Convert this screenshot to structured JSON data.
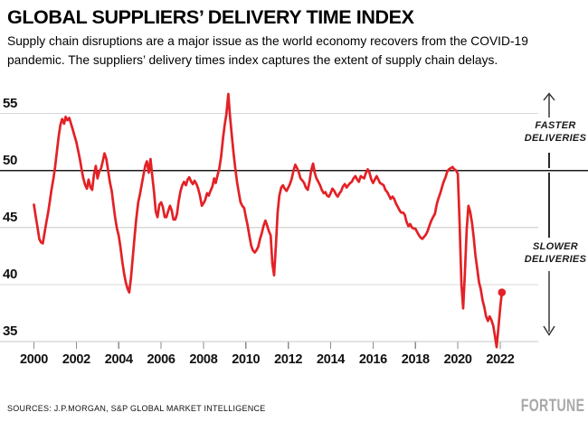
{
  "header": {
    "title": "GLOBAL SUPPLIERS’ DELIVERY TIME INDEX",
    "subtitle_line1": "Supply chain disruptions are a major issue as the world economy recovers from the COVID-19",
    "subtitle_line2": "pandemic. The suppliers’ delivery times index captures the extent of supply chain delays."
  },
  "annotations": {
    "faster": "FASTER\nDELIVERIES",
    "slower": "SLOWER\nDELIVERIES"
  },
  "footer": {
    "sources": "SOURCES: J.P.MORGAN, S&P GLOBAL MARKET INTELLIGENCE",
    "logo": "FORTUNE"
  },
  "colors": {
    "line": "#e32126",
    "reference_line": "#1a1a1a",
    "gridline": "#d9d9d9",
    "axis_line": "#c7c7c7",
    "tick": "#8d8d8d",
    "logo_gray": "#a8a8a8",
    "text": "#000000"
  },
  "chart_data": {
    "type": "line",
    "title": "Global suppliers' delivery time index",
    "series_name": "Suppliers' delivery times index",
    "xlabel": "",
    "ylabel": "",
    "x_range": [
      2000,
      2022.25
    ],
    "y_range_shown": [
      35,
      57
    ],
    "yticks": [
      55,
      50,
      45,
      40,
      35
    ],
    "xticks": [
      2000,
      2002,
      2004,
      2006,
      2008,
      2010,
      2012,
      2014,
      2016,
      2018,
      2020,
      2022
    ],
    "reference_line_value": 50,
    "grid": "horizontal",
    "end_dot": true,
    "points": [
      [
        2000.0,
        47.0
      ],
      [
        2000.08,
        46.0
      ],
      [
        2000.17,
        45.0
      ],
      [
        2000.25,
        44.0
      ],
      [
        2000.33,
        43.7
      ],
      [
        2000.42,
        43.6
      ],
      [
        2000.5,
        44.5
      ],
      [
        2000.58,
        45.4
      ],
      [
        2000.67,
        46.3
      ],
      [
        2000.75,
        47.3
      ],
      [
        2000.83,
        48.3
      ],
      [
        2000.92,
        49.3
      ],
      [
        2001.0,
        50.3
      ],
      [
        2001.08,
        51.6
      ],
      [
        2001.17,
        53.0
      ],
      [
        2001.25,
        54.0
      ],
      [
        2001.33,
        54.5
      ],
      [
        2001.42,
        54.1
      ],
      [
        2001.5,
        54.7
      ],
      [
        2001.58,
        54.4
      ],
      [
        2001.67,
        54.6
      ],
      [
        2001.75,
        54.1
      ],
      [
        2001.83,
        53.6
      ],
      [
        2001.92,
        53.0
      ],
      [
        2002.0,
        52.5
      ],
      [
        2002.08,
        51.8
      ],
      [
        2002.17,
        51.0
      ],
      [
        2002.25,
        50.1
      ],
      [
        2002.33,
        49.3
      ],
      [
        2002.42,
        48.7
      ],
      [
        2002.5,
        48.4
      ],
      [
        2002.58,
        49.2
      ],
      [
        2002.67,
        48.5
      ],
      [
        2002.75,
        48.3
      ],
      [
        2002.83,
        49.6
      ],
      [
        2002.92,
        50.4
      ],
      [
        2003.0,
        49.3
      ],
      [
        2003.08,
        49.9
      ],
      [
        2003.17,
        50.2
      ],
      [
        2003.25,
        50.8
      ],
      [
        2003.33,
        51.5
      ],
      [
        2003.42,
        51.0
      ],
      [
        2003.5,
        50.0
      ],
      [
        2003.58,
        49.0
      ],
      [
        2003.67,
        48.2
      ],
      [
        2003.75,
        47.0
      ],
      [
        2003.83,
        45.9
      ],
      [
        2003.92,
        44.9
      ],
      [
        2004.0,
        44.3
      ],
      [
        2004.08,
        43.3
      ],
      [
        2004.17,
        42.0
      ],
      [
        2004.25,
        41.0
      ],
      [
        2004.33,
        40.2
      ],
      [
        2004.42,
        39.6
      ],
      [
        2004.5,
        39.3
      ],
      [
        2004.58,
        40.6
      ],
      [
        2004.67,
        42.5
      ],
      [
        2004.75,
        44.2
      ],
      [
        2004.83,
        45.8
      ],
      [
        2004.92,
        47.2
      ],
      [
        2005.0,
        47.9
      ],
      [
        2005.08,
        48.7
      ],
      [
        2005.17,
        49.6
      ],
      [
        2005.25,
        50.4
      ],
      [
        2005.33,
        50.8
      ],
      [
        2005.42,
        49.8
      ],
      [
        2005.5,
        51.0
      ],
      [
        2005.58,
        49.6
      ],
      [
        2005.67,
        48.1
      ],
      [
        2005.75,
        46.4
      ],
      [
        2005.83,
        45.9
      ],
      [
        2005.92,
        47.0
      ],
      [
        2006.0,
        47.2
      ],
      [
        2006.08,
        46.8
      ],
      [
        2006.17,
        45.9
      ],
      [
        2006.25,
        45.9
      ],
      [
        2006.33,
        46.4
      ],
      [
        2006.42,
        46.9
      ],
      [
        2006.5,
        46.5
      ],
      [
        2006.58,
        45.7
      ],
      [
        2006.67,
        45.7
      ],
      [
        2006.75,
        46.2
      ],
      [
        2006.83,
        47.3
      ],
      [
        2006.92,
        48.2
      ],
      [
        2007.0,
        48.7
      ],
      [
        2007.08,
        49.0
      ],
      [
        2007.17,
        48.7
      ],
      [
        2007.25,
        49.2
      ],
      [
        2007.33,
        49.4
      ],
      [
        2007.42,
        49.0
      ],
      [
        2007.5,
        48.8
      ],
      [
        2007.58,
        49.1
      ],
      [
        2007.67,
        48.8
      ],
      [
        2007.75,
        48.4
      ],
      [
        2007.83,
        47.8
      ],
      [
        2007.92,
        46.9
      ],
      [
        2008.0,
        47.1
      ],
      [
        2008.08,
        47.4
      ],
      [
        2008.17,
        48.0
      ],
      [
        2008.25,
        47.8
      ],
      [
        2008.33,
        48.2
      ],
      [
        2008.42,
        48.6
      ],
      [
        2008.5,
        49.3
      ],
      [
        2008.58,
        48.9
      ],
      [
        2008.67,
        49.6
      ],
      [
        2008.75,
        50.2
      ],
      [
        2008.83,
        51.2
      ],
      [
        2008.92,
        52.8
      ],
      [
        2009.0,
        54.0
      ],
      [
        2009.08,
        54.9
      ],
      [
        2009.17,
        56.7
      ],
      [
        2009.25,
        54.8
      ],
      [
        2009.33,
        53.2
      ],
      [
        2009.42,
        51.5
      ],
      [
        2009.5,
        50.2
      ],
      [
        2009.58,
        49.0
      ],
      [
        2009.67,
        48.0
      ],
      [
        2009.75,
        47.2
      ],
      [
        2009.83,
        46.9
      ],
      [
        2009.92,
        46.7
      ],
      [
        2010.0,
        45.9
      ],
      [
        2010.08,
        45.2
      ],
      [
        2010.17,
        44.2
      ],
      [
        2010.25,
        43.4
      ],
      [
        2010.33,
        43.0
      ],
      [
        2010.42,
        42.8
      ],
      [
        2010.5,
        43.0
      ],
      [
        2010.58,
        43.3
      ],
      [
        2010.67,
        44.0
      ],
      [
        2010.75,
        44.5
      ],
      [
        2010.83,
        45.1
      ],
      [
        2010.92,
        45.6
      ],
      [
        2011.0,
        45.2
      ],
      [
        2011.08,
        44.7
      ],
      [
        2011.17,
        44.3
      ],
      [
        2011.25,
        41.8
      ],
      [
        2011.33,
        40.8
      ],
      [
        2011.42,
        43.6
      ],
      [
        2011.5,
        46.3
      ],
      [
        2011.58,
        47.8
      ],
      [
        2011.67,
        48.5
      ],
      [
        2011.75,
        48.7
      ],
      [
        2011.83,
        48.4
      ],
      [
        2011.92,
        48.2
      ],
      [
        2012.0,
        48.5
      ],
      [
        2012.08,
        48.8
      ],
      [
        2012.17,
        49.3
      ],
      [
        2012.25,
        50.0
      ],
      [
        2012.33,
        50.5
      ],
      [
        2012.42,
        50.2
      ],
      [
        2012.5,
        49.8
      ],
      [
        2012.58,
        49.3
      ],
      [
        2012.67,
        49.1
      ],
      [
        2012.75,
        48.9
      ],
      [
        2012.83,
        48.5
      ],
      [
        2012.92,
        48.3
      ],
      [
        2013.0,
        49.0
      ],
      [
        2013.08,
        50.0
      ],
      [
        2013.17,
        50.6
      ],
      [
        2013.25,
        49.8
      ],
      [
        2013.33,
        49.3
      ],
      [
        2013.42,
        49.0
      ],
      [
        2013.5,
        48.7
      ],
      [
        2013.58,
        48.3
      ],
      [
        2013.67,
        48.0
      ],
      [
        2013.75,
        48.1
      ],
      [
        2013.83,
        47.8
      ],
      [
        2013.92,
        47.7
      ],
      [
        2014.0,
        48.0
      ],
      [
        2014.08,
        48.4
      ],
      [
        2014.17,
        48.2
      ],
      [
        2014.25,
        47.9
      ],
      [
        2014.33,
        47.7
      ],
      [
        2014.42,
        48.0
      ],
      [
        2014.5,
        48.2
      ],
      [
        2014.58,
        48.6
      ],
      [
        2014.67,
        48.8
      ],
      [
        2014.75,
        48.5
      ],
      [
        2014.83,
        48.7
      ],
      [
        2014.92,
        48.9
      ],
      [
        2015.0,
        49.0
      ],
      [
        2015.08,
        49.3
      ],
      [
        2015.17,
        49.5
      ],
      [
        2015.25,
        49.2
      ],
      [
        2015.33,
        49.0
      ],
      [
        2015.42,
        49.5
      ],
      [
        2015.5,
        49.4
      ],
      [
        2015.58,
        49.3
      ],
      [
        2015.67,
        49.8
      ],
      [
        2015.75,
        50.1
      ],
      [
        2015.83,
        49.8
      ],
      [
        2015.92,
        49.2
      ],
      [
        2016.0,
        48.9
      ],
      [
        2016.08,
        49.2
      ],
      [
        2016.17,
        49.5
      ],
      [
        2016.25,
        49.2
      ],
      [
        2016.33,
        48.9
      ],
      [
        2016.42,
        48.8
      ],
      [
        2016.5,
        48.7
      ],
      [
        2016.58,
        48.3
      ],
      [
        2016.67,
        48.1
      ],
      [
        2016.75,
        47.8
      ],
      [
        2016.83,
        47.5
      ],
      [
        2016.92,
        47.7
      ],
      [
        2017.0,
        47.5
      ],
      [
        2017.08,
        47.1
      ],
      [
        2017.17,
        46.8
      ],
      [
        2017.25,
        46.5
      ],
      [
        2017.33,
        46.3
      ],
      [
        2017.42,
        46.3
      ],
      [
        2017.5,
        46.1
      ],
      [
        2017.58,
        45.5
      ],
      [
        2017.67,
        45.1
      ],
      [
        2017.75,
        45.3
      ],
      [
        2017.83,
        45.0
      ],
      [
        2017.92,
        44.9
      ],
      [
        2018.0,
        44.9
      ],
      [
        2018.08,
        44.6
      ],
      [
        2018.17,
        44.3
      ],
      [
        2018.25,
        44.1
      ],
      [
        2018.33,
        44.0
      ],
      [
        2018.42,
        44.2
      ],
      [
        2018.5,
        44.4
      ],
      [
        2018.58,
        44.7
      ],
      [
        2018.67,
        45.2
      ],
      [
        2018.75,
        45.6
      ],
      [
        2018.83,
        45.9
      ],
      [
        2018.92,
        46.2
      ],
      [
        2019.0,
        47.0
      ],
      [
        2019.08,
        47.5
      ],
      [
        2019.17,
        48.0
      ],
      [
        2019.25,
        48.5
      ],
      [
        2019.33,
        49.0
      ],
      [
        2019.42,
        49.4
      ],
      [
        2019.5,
        49.9
      ],
      [
        2019.58,
        50.1
      ],
      [
        2019.67,
        50.2
      ],
      [
        2019.75,
        50.3
      ],
      [
        2019.83,
        50.1
      ],
      [
        2019.92,
        50.0
      ],
      [
        2020.0,
        49.7
      ],
      [
        2020.08,
        45.5
      ],
      [
        2020.17,
        40.0
      ],
      [
        2020.25,
        37.9
      ],
      [
        2020.33,
        40.8
      ],
      [
        2020.42,
        44.8
      ],
      [
        2020.5,
        46.9
      ],
      [
        2020.58,
        46.4
      ],
      [
        2020.67,
        45.4
      ],
      [
        2020.75,
        44.1
      ],
      [
        2020.83,
        42.6
      ],
      [
        2020.92,
        41.3
      ],
      [
        2021.0,
        40.2
      ],
      [
        2021.08,
        39.6
      ],
      [
        2021.17,
        38.6
      ],
      [
        2021.25,
        38.0
      ],
      [
        2021.33,
        37.2
      ],
      [
        2021.42,
        36.8
      ],
      [
        2021.5,
        37.2
      ],
      [
        2021.58,
        36.9
      ],
      [
        2021.67,
        36.4
      ],
      [
        2021.75,
        35.5
      ],
      [
        2021.83,
        34.5
      ],
      [
        2021.92,
        36.3
      ],
      [
        2022.0,
        38.0
      ],
      [
        2022.08,
        39.3
      ]
    ]
  }
}
